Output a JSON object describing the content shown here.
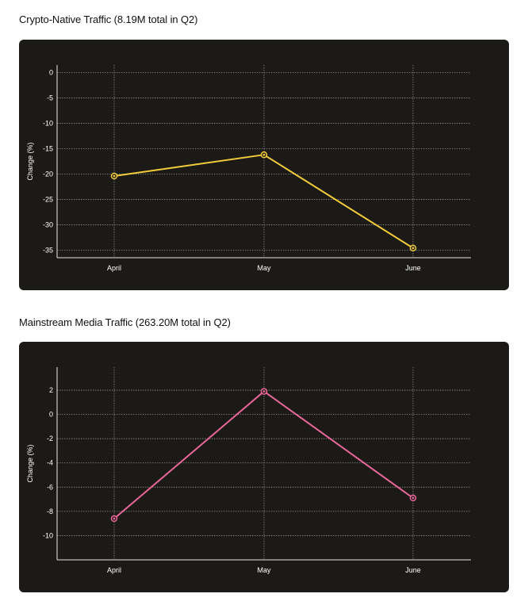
{
  "chart_data": [
    {
      "type": "line",
      "title": "Crypto-Native Traffic (8.19M total in Q2)",
      "xlabel": "",
      "ylabel": "Change (%)",
      "categories": [
        "April",
        "May",
        "June"
      ],
      "series": [
        {
          "values": [
            -20.4,
            -16.2,
            -34.6
          ],
          "color": "#f2cc3c"
        }
      ],
      "yticks": [
        0,
        -5,
        -10,
        -15,
        -20,
        -25,
        -30,
        -35
      ],
      "ylim": [
        -36.5,
        1.5
      ],
      "grid": true
    },
    {
      "type": "line",
      "title": "Mainstream Media Traffic (263.20M total in Q2)",
      "xlabel": "",
      "ylabel": "Change (%)",
      "categories": [
        "April",
        "May",
        "June"
      ],
      "series": [
        {
          "values": [
            -8.6,
            1.9,
            -6.9
          ],
          "color": "#e9669a"
        }
      ],
      "yticks": [
        2,
        0,
        -2,
        -4,
        -6,
        -8,
        -10
      ],
      "ylim": [
        -12,
        3.9
      ],
      "grid": true
    }
  ]
}
